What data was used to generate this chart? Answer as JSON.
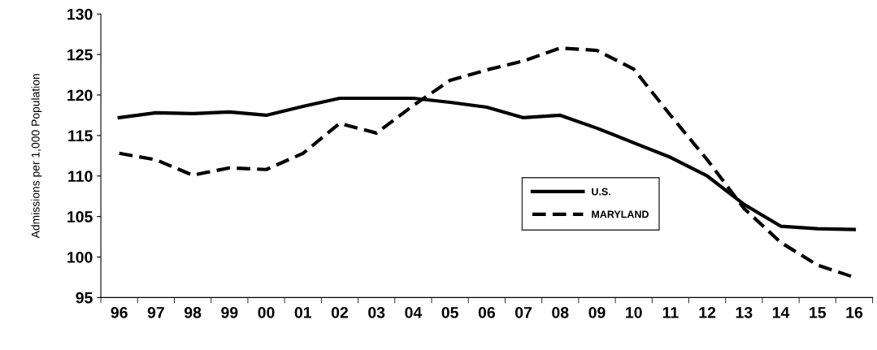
{
  "chart_data": {
    "type": "line",
    "ylabel": "Admissions per 1,000 Population",
    "categories": [
      "96",
      "97",
      "98",
      "99",
      "00",
      "01",
      "02",
      "03",
      "04",
      "05",
      "06",
      "07",
      "08",
      "09",
      "10",
      "11",
      "12",
      "13",
      "14",
      "15",
      "16"
    ],
    "series": [
      {
        "name": "U.S.",
        "color": "#000000",
        "line_style": "solid",
        "values": [
          117.2,
          117.8,
          117.7,
          117.9,
          117.5,
          118.6,
          119.6,
          119.6,
          119.6,
          119.1,
          118.5,
          117.2,
          117.5,
          115.9,
          114.1,
          112.3,
          110.0,
          106.5,
          103.8,
          103.5,
          103.4
        ]
      },
      {
        "name": "MARYLAND",
        "color": "#000000",
        "line_style": "dashed",
        "values": [
          112.8,
          112.0,
          110.1,
          111.0,
          110.8,
          112.8,
          116.5,
          115.3,
          118.7,
          121.8,
          123.1,
          124.2,
          125.8,
          125.5,
          123.2,
          117.5,
          112.0,
          106.0,
          101.8,
          99.0,
          97.5
        ]
      }
    ],
    "ylim": [
      95,
      130
    ],
    "yticks": [
      95,
      100,
      105,
      110,
      115,
      120,
      125,
      130
    ],
    "grid": false,
    "legend": "bottom right",
    "marker": "none"
  }
}
